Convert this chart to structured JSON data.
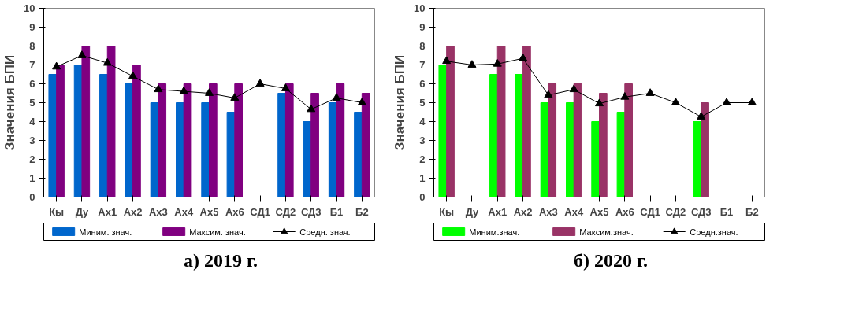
{
  "chart_data": [
    {
      "type": "bar",
      "title": "а) 2019 г.",
      "ylabel": "Значения БПИ",
      "categories": [
        "Кы",
        "Ду",
        "Ах1",
        "Ах2",
        "Ах3",
        "Ах4",
        "Ах5",
        "Ах6",
        "СД1",
        "СД2",
        "СД3",
        "Б1",
        "Б2"
      ],
      "ylim": [
        0,
        10
      ],
      "yticks": [
        0,
        1,
        2,
        3,
        4,
        5,
        6,
        7,
        8,
        9,
        10
      ],
      "grid": false,
      "legend": "bottom",
      "series": [
        {
          "name": "Миним. знач.",
          "color": "#0066cc",
          "values": [
            6.5,
            7,
            6.5,
            6,
            5,
            5,
            5,
            4.5,
            null,
            5.5,
            4,
            5,
            4.5
          ]
        },
        {
          "name": "Максим. знач.",
          "color": "#800080",
          "values": [
            7,
            8,
            8,
            7,
            6,
            6,
            6,
            6,
            null,
            6,
            5.5,
            6,
            5.5
          ]
        },
        {
          "name": "Средн. знач.",
          "type": "line",
          "color": "#000000",
          "marker": "triangle",
          "values": [
            6.9,
            7.5,
            7.1,
            6.4,
            5.7,
            5.6,
            5.5,
            5.25,
            6,
            5.75,
            4.65,
            5.25,
            5.0
          ]
        }
      ]
    },
    {
      "type": "bar",
      "title": "б) 2020 г.",
      "ylabel": "Значения БПИ",
      "categories": [
        "Кы",
        "Ду",
        "Ах1",
        "Ах2",
        "Ах3",
        "Ах4",
        "Ах5",
        "Ах6",
        "СД1",
        "СД2",
        "СД3",
        "Б1",
        "Б2"
      ],
      "ylim": [
        0,
        10
      ],
      "yticks": [
        0,
        1,
        2,
        3,
        4,
        5,
        6,
        7,
        8,
        9,
        10
      ],
      "grid": false,
      "legend": "bottom",
      "series": [
        {
          "name": "Миним.знач.",
          "color": "#00ff00",
          "values": [
            7,
            null,
            6.5,
            6.5,
            5,
            5,
            4,
            4.5,
            null,
            null,
            4,
            null,
            null
          ]
        },
        {
          "name": "Максим.знач.",
          "color": "#993366",
          "values": [
            8,
            null,
            8,
            8,
            6,
            6,
            5.5,
            6,
            null,
            null,
            5,
            null,
            null
          ]
        },
        {
          "name": "Средн.знач.",
          "type": "line",
          "color": "#000000",
          "marker": "triangle",
          "values": [
            7.2,
            7,
            7.05,
            7.35,
            5.4,
            5.7,
            4.95,
            5.3,
            5.5,
            5,
            4.25,
            5,
            5
          ]
        }
      ]
    }
  ]
}
